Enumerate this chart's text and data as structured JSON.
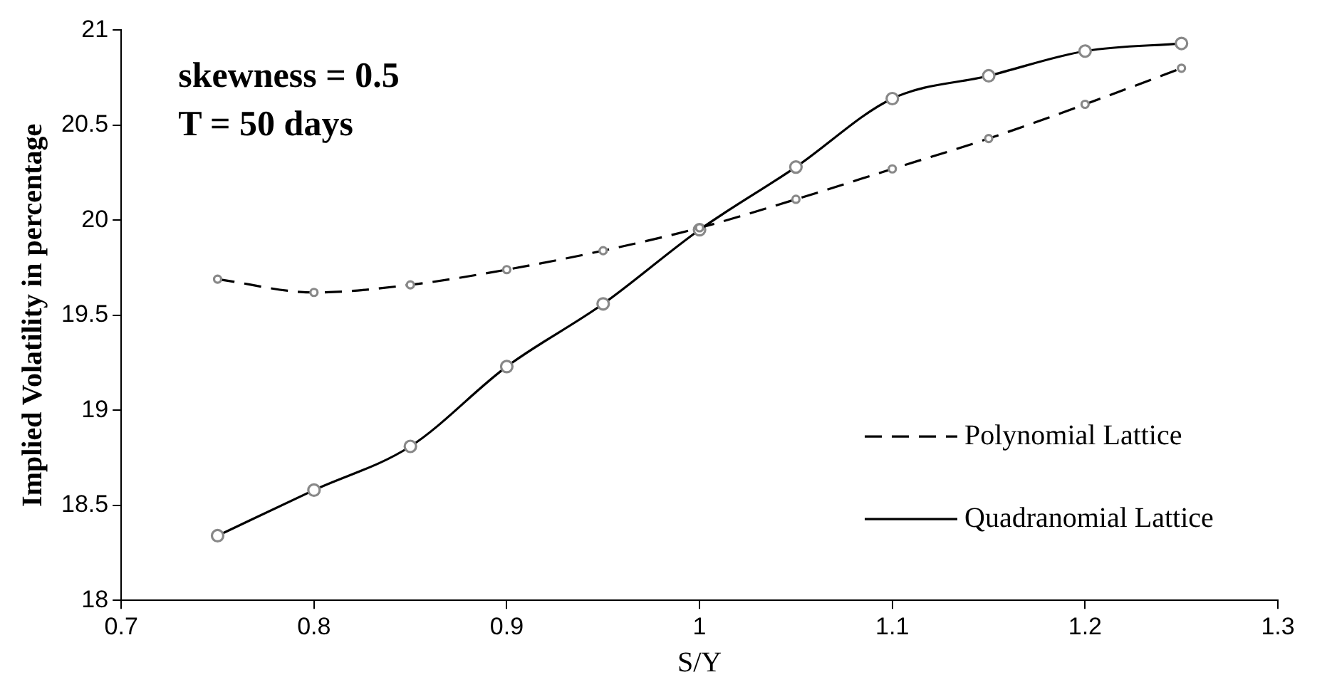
{
  "chart_data": {
    "type": "line",
    "xlabel": "S/Υ",
    "ylabel": "Implied Volatility in percentage",
    "x": [
      0.75,
      0.8,
      0.85,
      0.9,
      0.95,
      1.0,
      1.05,
      1.1,
      1.15,
      1.2,
      1.25
    ],
    "series": [
      {
        "name": "Polynomial Lattice",
        "color": "#000000",
        "line_style": "dashed",
        "values": [
          19.69,
          19.62,
          19.66,
          19.74,
          19.84,
          19.96,
          20.11,
          20.27,
          20.43,
          20.61,
          20.8
        ]
      },
      {
        "name": "Quadranomial Lattice",
        "color": "#000000",
        "line_style": "solid",
        "values": [
          18.34,
          18.58,
          18.81,
          19.23,
          19.56,
          19.95,
          20.28,
          20.64,
          20.76,
          20.89,
          20.93
        ]
      }
    ],
    "annotations": [
      "skewness = 0.5",
      "T = 50 days"
    ],
    "xlim": [
      0.7,
      1.3
    ],
    "xticks": [
      0.7,
      0.8,
      0.9,
      1,
      1.1,
      1.2,
      1.3
    ],
    "ylim": [
      18,
      21
    ],
    "yticks": [
      18,
      18.5,
      19,
      19.5,
      20,
      20.5,
      21
    ],
    "marker": "circle",
    "grid": false,
    "legend": "bottom right"
  }
}
